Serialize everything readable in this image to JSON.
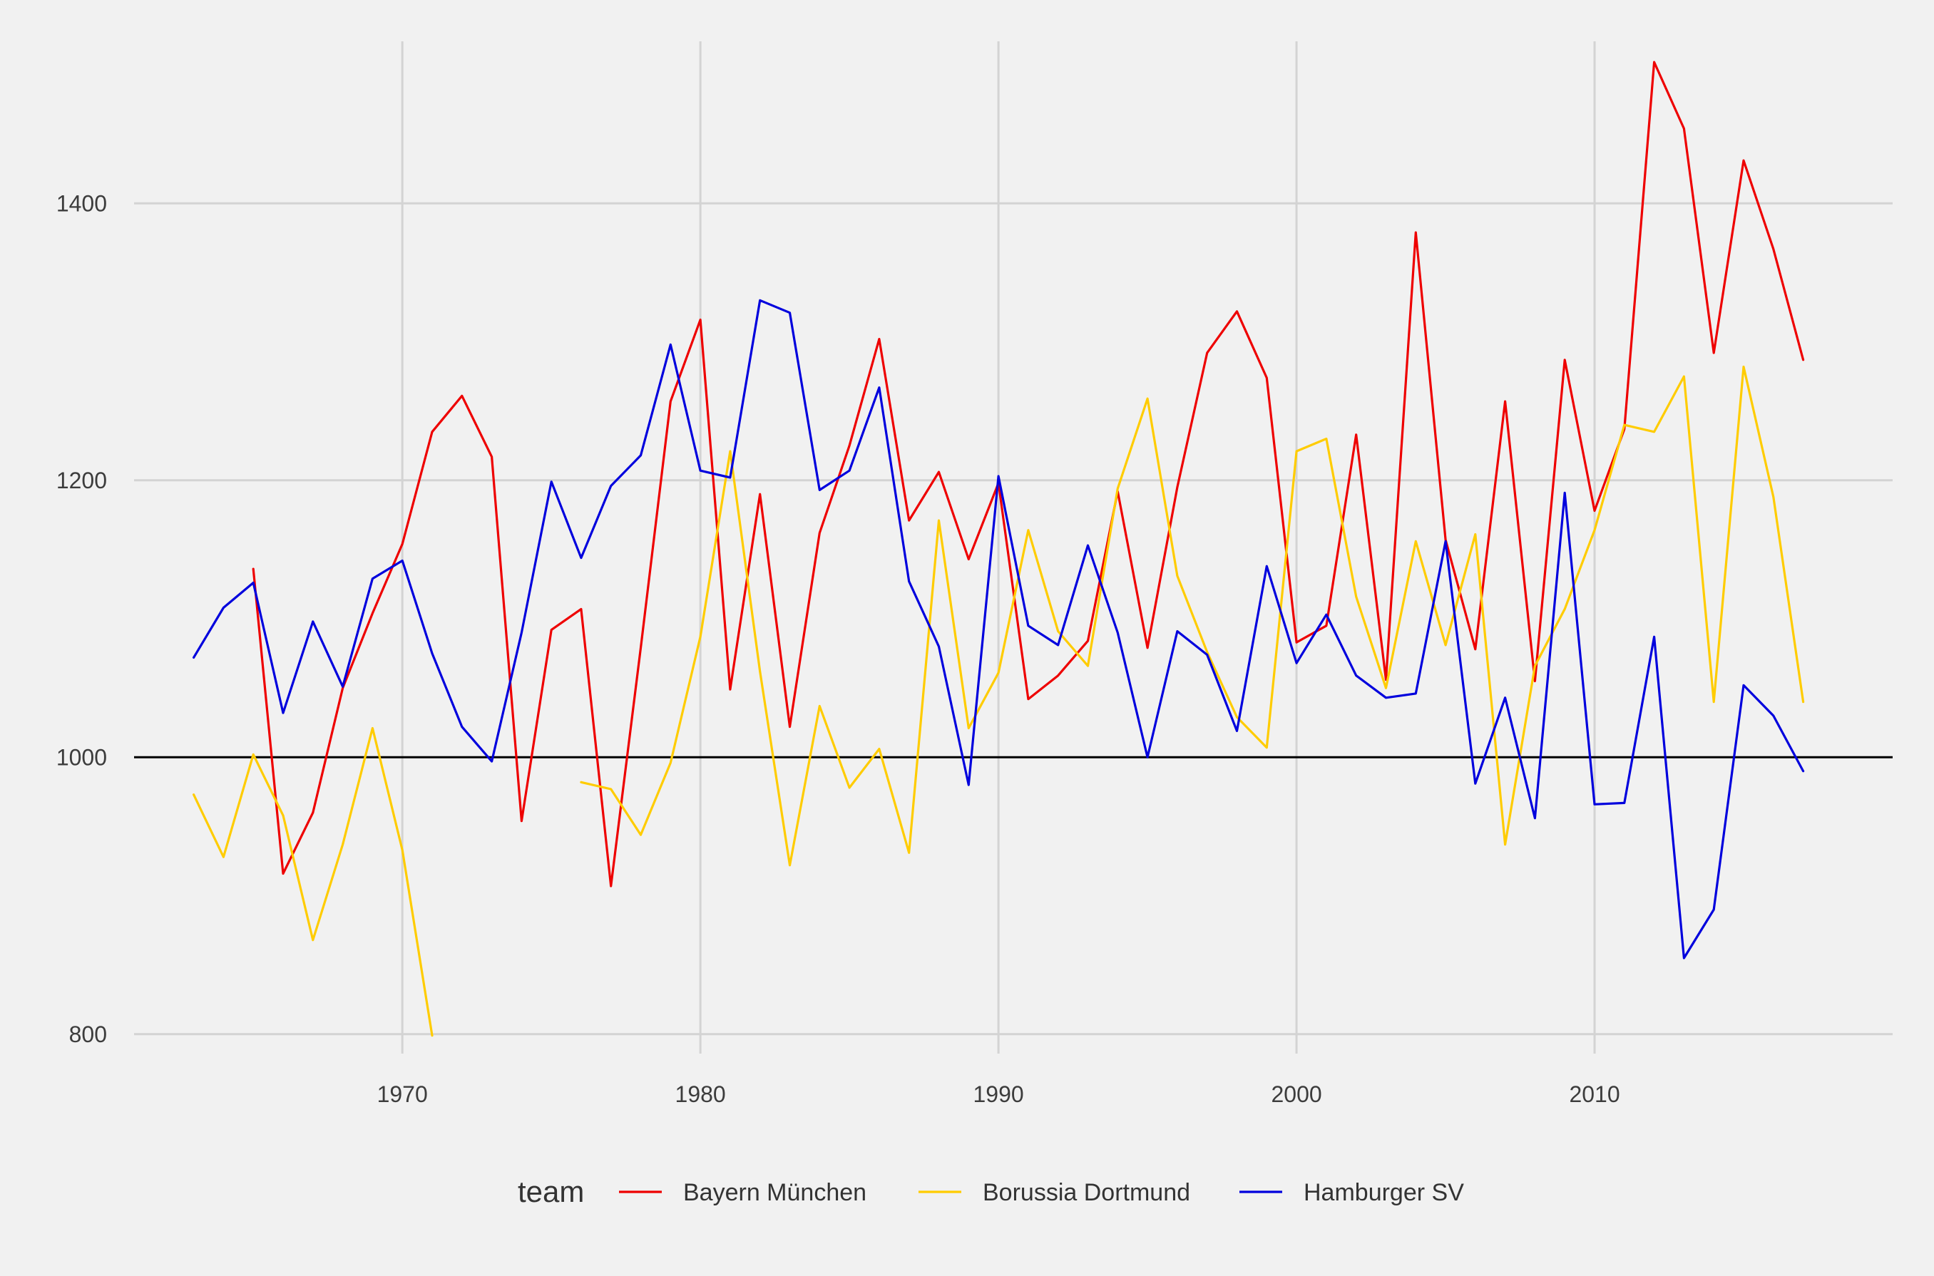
{
  "chart_data": {
    "type": "line",
    "title": "",
    "xlabel": "",
    "ylabel": "",
    "xlim": [
      1961,
      2020
    ],
    "ylim": [
      786,
      1517
    ],
    "x_ticks": [
      1970,
      1980,
      1990,
      2000,
      2010
    ],
    "y_ticks": [
      800,
      1000,
      1200,
      1400
    ],
    "reference_line": 1000,
    "grid": true,
    "legend": {
      "title": "team",
      "placement": "bottom"
    },
    "series": [
      {
        "name": "Bayern München",
        "color": "#ee0000",
        "points": [
          [
            1965,
            1136
          ],
          [
            1966,
            916
          ],
          [
            1967,
            960
          ],
          [
            1968,
            1050
          ],
          [
            1969,
            1104
          ],
          [
            1970,
            1154
          ],
          [
            1971,
            1235
          ],
          [
            1972,
            1261
          ],
          [
            1973,
            1217
          ],
          [
            1974,
            954
          ],
          [
            1975,
            1092
          ],
          [
            1976,
            1107
          ],
          [
            1977,
            907
          ],
          [
            1978,
            1079
          ],
          [
            1979,
            1257
          ],
          [
            1980,
            1316
          ],
          [
            1981,
            1049
          ],
          [
            1982,
            1190
          ],
          [
            1983,
            1022
          ],
          [
            1984,
            1162
          ],
          [
            1985,
            1225
          ],
          [
            1986,
            1302
          ],
          [
            1987,
            1171
          ],
          [
            1988,
            1206
          ],
          [
            1989,
            1143
          ],
          [
            1990,
            1198
          ],
          [
            1991,
            1042
          ],
          [
            1992,
            1059
          ],
          [
            1993,
            1084
          ],
          [
            1994,
            1192
          ],
          [
            1995,
            1079
          ],
          [
            1996,
            1195
          ],
          [
            1997,
            1292
          ],
          [
            1998,
            1322
          ],
          [
            1999,
            1274
          ],
          [
            2000,
            1083
          ],
          [
            2001,
            1095
          ],
          [
            2002,
            1233
          ],
          [
            2003,
            1056
          ],
          [
            2004,
            1379
          ],
          [
            2005,
            1157
          ],
          [
            2006,
            1078
          ],
          [
            2007,
            1257
          ],
          [
            2008,
            1055
          ],
          [
            2009,
            1287
          ],
          [
            2010,
            1178
          ],
          [
            2011,
            1237
          ],
          [
            2012,
            1502
          ],
          [
            2013,
            1454
          ],
          [
            2014,
            1292
          ],
          [
            2015,
            1431
          ],
          [
            2016,
            1367
          ],
          [
            2017,
            1287
          ]
        ]
      },
      {
        "name": "Borussia Dortmund",
        "color": "#ffcc00",
        "points": [
          [
            1963,
            973
          ],
          [
            1964,
            928
          ],
          [
            1965,
            1002
          ],
          [
            1966,
            958
          ],
          [
            1967,
            868
          ],
          [
            1968,
            937
          ],
          [
            1969,
            1021
          ],
          [
            1970,
            933
          ],
          [
            1971,
            799
          ],
          [
            1972,
            null
          ],
          [
            1973,
            null
          ],
          [
            1974,
            null
          ],
          [
            1975,
            null
          ],
          [
            1976,
            982
          ],
          [
            1977,
            977
          ],
          [
            1978,
            944
          ],
          [
            1979,
            996
          ],
          [
            1980,
            1087
          ],
          [
            1981,
            1221
          ],
          [
            1982,
            1062
          ],
          [
            1983,
            922
          ],
          [
            1984,
            1037
          ],
          [
            1985,
            978
          ],
          [
            1986,
            1006
          ],
          [
            1987,
            931
          ],
          [
            1988,
            1171
          ],
          [
            1989,
            1021
          ],
          [
            1990,
            1061
          ],
          [
            1991,
            1164
          ],
          [
            1992,
            1091
          ],
          [
            1993,
            1066
          ],
          [
            1994,
            1194
          ],
          [
            1995,
            1259
          ],
          [
            1996,
            1131
          ],
          [
            1997,
            1076
          ],
          [
            1998,
            1029
          ],
          [
            1999,
            1007
          ],
          [
            2000,
            1221
          ],
          [
            2001,
            1230
          ],
          [
            2002,
            1116
          ],
          [
            2003,
            1050
          ],
          [
            2004,
            1156
          ],
          [
            2005,
            1081
          ],
          [
            2006,
            1161
          ],
          [
            2007,
            937
          ],
          [
            2008,
            1066
          ],
          [
            2009,
            1107
          ],
          [
            2010,
            1164
          ],
          [
            2011,
            1240
          ],
          [
            2012,
            1235
          ],
          [
            2013,
            1275
          ],
          [
            2014,
            1040
          ],
          [
            2015,
            1282
          ],
          [
            2016,
            1188
          ],
          [
            2017,
            1040
          ]
        ]
      },
      {
        "name": "Hamburger SV",
        "color": "#0000dd",
        "points": [
          [
            1963,
            1072
          ],
          [
            1964,
            1108
          ],
          [
            1965,
            1126
          ],
          [
            1966,
            1032
          ],
          [
            1967,
            1098
          ],
          [
            1968,
            1051
          ],
          [
            1969,
            1129
          ],
          [
            1970,
            1142
          ],
          [
            1971,
            1075
          ],
          [
            1972,
            1022
          ],
          [
            1973,
            997
          ],
          [
            1974,
            1090
          ],
          [
            1975,
            1199
          ],
          [
            1976,
            1144
          ],
          [
            1977,
            1196
          ],
          [
            1978,
            1218
          ],
          [
            1979,
            1298
          ],
          [
            1980,
            1207
          ],
          [
            1981,
            1202
          ],
          [
            1982,
            1330
          ],
          [
            1983,
            1321
          ],
          [
            1984,
            1193
          ],
          [
            1985,
            1207
          ],
          [
            1986,
            1267
          ],
          [
            1987,
            1127
          ],
          [
            1988,
            1080
          ],
          [
            1989,
            980
          ],
          [
            1990,
            1203
          ],
          [
            1991,
            1095
          ],
          [
            1992,
            1081
          ],
          [
            1993,
            1153
          ],
          [
            1994,
            1090
          ],
          [
            1995,
            1000
          ],
          [
            1996,
            1091
          ],
          [
            1997,
            1074
          ],
          [
            1998,
            1019
          ],
          [
            1999,
            1138
          ],
          [
            2000,
            1068
          ],
          [
            2001,
            1103
          ],
          [
            2002,
            1059
          ],
          [
            2003,
            1043
          ],
          [
            2004,
            1046
          ],
          [
            2005,
            1156
          ],
          [
            2006,
            981
          ],
          [
            2007,
            1043
          ],
          [
            2008,
            956
          ],
          [
            2009,
            1191
          ],
          [
            2010,
            966
          ],
          [
            2011,
            967
          ],
          [
            2012,
            1087
          ],
          [
            2013,
            855
          ],
          [
            2014,
            890
          ],
          [
            2015,
            1052
          ],
          [
            2016,
            1030
          ],
          [
            2017,
            990
          ]
        ]
      }
    ]
  }
}
